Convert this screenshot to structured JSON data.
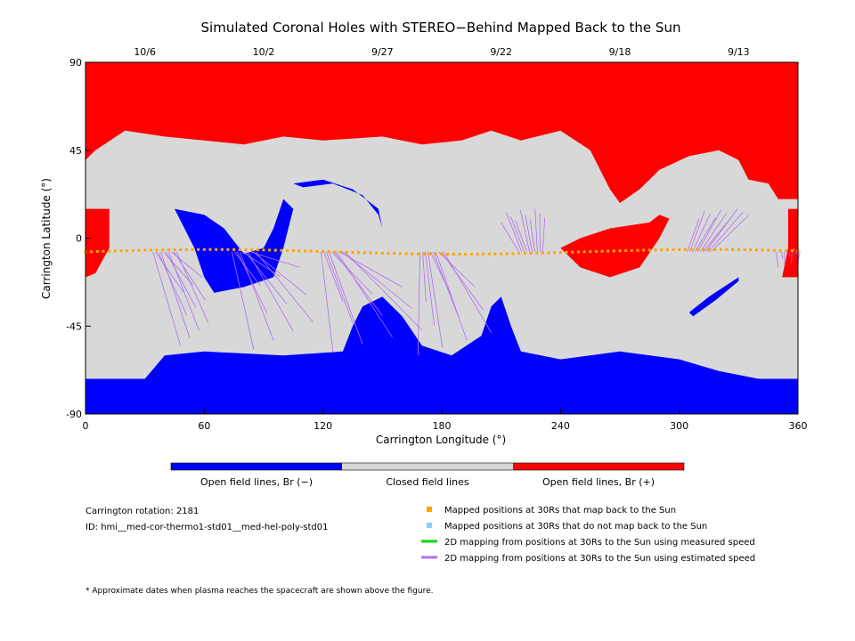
{
  "chart_data": {
    "type": "heatmap",
    "title": "Simulated Coronal Holes with STEREO−Behind Mapped Back to the Sun",
    "xlabel": "Carrington Longitude (°)",
    "ylabel": "Carrington Latitude (°)",
    "xlim": [
      0,
      360
    ],
    "ylim": [
      -90,
      90
    ],
    "x_ticks": [
      0,
      60,
      120,
      180,
      240,
      300,
      360
    ],
    "y_ticks": [
      90,
      45,
      0,
      -45,
      -90
    ],
    "top_date_ticks": [
      {
        "label": "10/6",
        "lon": 30
      },
      {
        "label": "10/2",
        "lon": 90
      },
      {
        "label": "9/27",
        "lon": 150
      },
      {
        "label": "9/22",
        "lon": 210
      },
      {
        "label": "9/18",
        "lon": 270
      },
      {
        "label": "9/13",
        "lon": 330
      }
    ],
    "colors": {
      "open_negative": "#0000ff",
      "closed": "#d8d8d8",
      "open_positive": "#ff0000",
      "mapped_back": "#ffa500",
      "not_mapped": "#87cefa",
      "measured_speed": "#00dd00",
      "estimated_speed": "#b070f0"
    },
    "colorbar": [
      {
        "label": "Open field lines, Br (−)",
        "color": "#0000ff"
      },
      {
        "label": "Closed field lines",
        "color": "#d8d8d8"
      },
      {
        "label": "Open field lines, Br (+)",
        "color": "#ff0000"
      }
    ],
    "regions": {
      "open_positive_north": [
        [
          0,
          90
        ],
        [
          360,
          90
        ],
        [
          360,
          20
        ],
        [
          350,
          20
        ],
        [
          345,
          28
        ],
        [
          335,
          30
        ],
        [
          330,
          40
        ],
        [
          320,
          45
        ],
        [
          305,
          42
        ],
        [
          290,
          35
        ],
        [
          280,
          25
        ],
        [
          270,
          18
        ],
        [
          265,
          25
        ],
        [
          255,
          45
        ],
        [
          240,
          55
        ],
        [
          220,
          50
        ],
        [
          205,
          55
        ],
        [
          190,
          50
        ],
        [
          170,
          48
        ],
        [
          150,
          52
        ],
        [
          120,
          50
        ],
        [
          100,
          52
        ],
        [
          80,
          48
        ],
        [
          60,
          50
        ],
        [
          40,
          52
        ],
        [
          20,
          55
        ],
        [
          5,
          45
        ],
        [
          0,
          40
        ]
      ],
      "open_positive_west_lobe": [
        [
          0,
          15
        ],
        [
          12,
          15
        ],
        [
          12,
          -5
        ],
        [
          5,
          -18
        ],
        [
          0,
          -20
        ]
      ],
      "open_positive_mid_lobe": [
        [
          240,
          -5
        ],
        [
          250,
          0
        ],
        [
          265,
          5
        ],
        [
          285,
          8
        ],
        [
          290,
          12
        ],
        [
          295,
          10
        ],
        [
          290,
          0
        ],
        [
          280,
          -15
        ],
        [
          265,
          -20
        ],
        [
          250,
          -15
        ]
      ],
      "open_positive_east_lobe": [
        [
          355,
          15
        ],
        [
          360,
          15
        ],
        [
          360,
          -20
        ],
        [
          352,
          -20
        ],
        [
          355,
          -5
        ]
      ],
      "open_negative_south": [
        [
          0,
          -72
        ],
        [
          30,
          -72
        ],
        [
          40,
          -60
        ],
        [
          60,
          -58
        ],
        [
          100,
          -60
        ],
        [
          130,
          -58
        ],
        [
          135,
          -45
        ],
        [
          140,
          -35
        ],
        [
          150,
          -30
        ],
        [
          160,
          -40
        ],
        [
          170,
          -55
        ],
        [
          185,
          -60
        ],
        [
          200,
          -50
        ],
        [
          205,
          -35
        ],
        [
          210,
          -30
        ],
        [
          215,
          -45
        ],
        [
          220,
          -58
        ],
        [
          240,
          -62
        ],
        [
          270,
          -58
        ],
        [
          300,
          -62
        ],
        [
          320,
          -68
        ],
        [
          340,
          -72
        ],
        [
          360,
          -72
        ],
        [
          360,
          -90
        ],
        [
          0,
          -90
        ]
      ],
      "open_negative_northwest_patch": [
        [
          45,
          15
        ],
        [
          60,
          12
        ],
        [
          70,
          5
        ],
        [
          80,
          -8
        ],
        [
          90,
          -5
        ],
        [
          95,
          5
        ],
        [
          100,
          20
        ],
        [
          105,
          15
        ],
        [
          100,
          -5
        ],
        [
          95,
          -20
        ],
        [
          80,
          -25
        ],
        [
          65,
          -28
        ],
        [
          60,
          -20
        ],
        [
          55,
          -5
        ],
        [
          50,
          5
        ]
      ],
      "open_negative_arc": [
        [
          105,
          28
        ],
        [
          120,
          30
        ],
        [
          135,
          25
        ],
        [
          148,
          15
        ],
        [
          150,
          5
        ],
        [
          148,
          12
        ],
        [
          140,
          22
        ],
        [
          125,
          28
        ],
        [
          110,
          26
        ]
      ],
      "open_negative_sliver": [
        [
          305,
          -38
        ],
        [
          315,
          -30
        ],
        [
          330,
          -20
        ],
        [
          330,
          -22
        ],
        [
          318,
          -32
        ],
        [
          307,
          -40
        ]
      ]
    },
    "mapped_positions_lat": -7,
    "mapped_positions_lon_range": [
      0,
      360
    ],
    "mapping_fans": [
      {
        "from_lon": 40,
        "to_lon_range": [
          48,
          62
        ],
        "to_lat_range": [
          -55,
          -20
        ]
      },
      {
        "from_lon": 80,
        "to_lon_range": [
          85,
          115
        ],
        "to_lat_range": [
          -57,
          -15
        ]
      },
      {
        "from_lon": 125,
        "to_lon_range": [
          125,
          170
        ],
        "to_lat_range": [
          -58,
          -25
        ]
      },
      {
        "from_lon": 175,
        "to_lon_range": [
          168,
          205
        ],
        "to_lat_range": [
          -60,
          -25
        ]
      },
      {
        "from_lon": 225,
        "to_lon_range": [
          210,
          232
        ],
        "to_lat_range": [
          8,
          15
        ]
      },
      {
        "from_lon": 310,
        "to_lon_range": [
          310,
          335
        ],
        "to_lat_range": [
          10,
          15
        ]
      },
      {
        "from_lon": 355,
        "to_lon_range": [
          350,
          360
        ],
        "to_lat_range": [
          -15,
          -5
        ]
      }
    ],
    "legend": [
      {
        "label": "Mapped positions at 30Rs that map back to the Sun",
        "type": "square",
        "color": "#ffa500"
      },
      {
        "label": "Mapped positions at 30Rs that do not map back to the Sun",
        "type": "square",
        "color": "#87cefa"
      },
      {
        "label": "2D mapping from positions at 30Rs to the Sun using measured speed",
        "type": "line",
        "color": "#00dd00"
      },
      {
        "label": "2D mapping from positions at 30Rs to the Sun using estimated speed",
        "type": "line",
        "color": "#b070f0"
      }
    ]
  },
  "info": {
    "rotation": "Carrington rotation: 2181",
    "id": "ID: hmi__med-cor-thermo1-std01__med-hel-poly-std01"
  },
  "footnote": "* Approximate dates when plasma reaches the spacecraft are shown above the figure."
}
